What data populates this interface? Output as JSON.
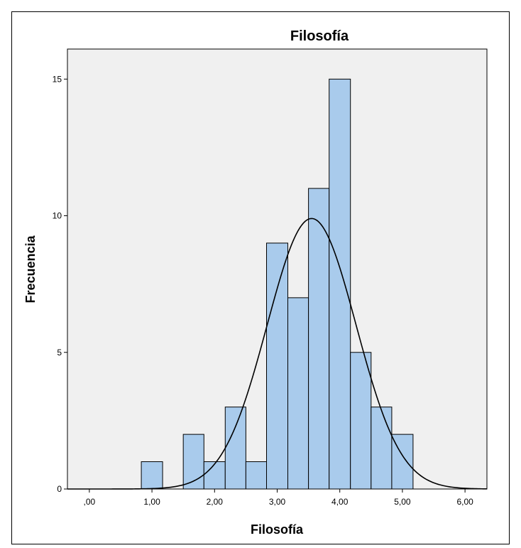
{
  "chart_data": {
    "type": "bar",
    "title": "Filosofía",
    "xlabel": "Filosofía",
    "ylabel": "Frecuencia",
    "xlim": [
      -0.35,
      6.35
    ],
    "ylim": [
      0,
      16.1
    ],
    "x_ticks": [
      {
        "value": 0,
        "label": ",00"
      },
      {
        "value": 1,
        "label": "1,00"
      },
      {
        "value": 2,
        "label": "2,00"
      },
      {
        "value": 3,
        "label": "3,00"
      },
      {
        "value": 4,
        "label": "4,00"
      },
      {
        "value": 5,
        "label": "5,00"
      },
      {
        "value": 6,
        "label": "6,00"
      }
    ],
    "y_ticks": [
      {
        "value": 0,
        "label": "0"
      },
      {
        "value": 5,
        "label": "5"
      },
      {
        "value": 10,
        "label": "10"
      },
      {
        "value": 15,
        "label": "15"
      }
    ],
    "bins": [
      {
        "start": 0.83,
        "end": 1.17,
        "count": 1
      },
      {
        "start": 1.5,
        "end": 1.83,
        "count": 2
      },
      {
        "start": 1.83,
        "end": 2.17,
        "count": 1
      },
      {
        "start": 2.17,
        "end": 2.5,
        "count": 3
      },
      {
        "start": 2.5,
        "end": 2.83,
        "count": 1
      },
      {
        "start": 2.83,
        "end": 3.17,
        "count": 9
      },
      {
        "start": 3.17,
        "end": 3.5,
        "count": 7
      },
      {
        "start": 3.5,
        "end": 3.83,
        "count": 11
      },
      {
        "start": 3.83,
        "end": 4.17,
        "count": 15
      },
      {
        "start": 4.17,
        "end": 4.5,
        "count": 5
      },
      {
        "start": 4.5,
        "end": 4.83,
        "count": 3
      },
      {
        "start": 4.83,
        "end": 5.17,
        "count": 2
      }
    ],
    "normal_curve": {
      "mean": 3.55,
      "sd": 0.71,
      "peak": 9.9
    },
    "grid": false,
    "colors": {
      "plot_background": "#f0f0f0",
      "bar_fill": "#a9cbec",
      "bar_stroke": "#000000",
      "curve": "#000000"
    }
  }
}
